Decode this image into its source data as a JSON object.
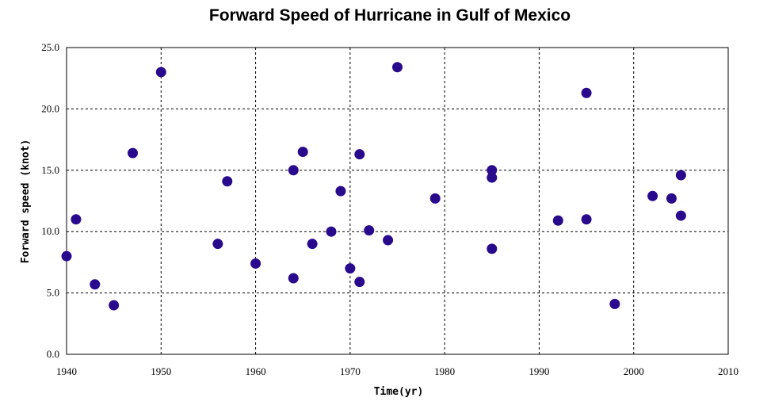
{
  "chart_data": {
    "type": "scatter",
    "title": "Forward Speed of Hurricane in Gulf of Mexico",
    "xlabel": "Time(yr)",
    "ylabel": "Forward speed (knot)",
    "xlim": [
      1940,
      2010
    ],
    "ylim": [
      0,
      25
    ],
    "x_ticks": [
      "1940",
      "1950",
      "1960",
      "1970",
      "1980",
      "1990",
      "2000",
      "2010"
    ],
    "y_ticks": [
      "0.0",
      "5.0",
      "10.0",
      "15.0",
      "20.0",
      "25.0"
    ],
    "grid": true,
    "marker_color": "#2a0a8c",
    "points": [
      {
        "x": 1940,
        "y": 8.0
      },
      {
        "x": 1941,
        "y": 11.0
      },
      {
        "x": 1943,
        "y": 5.7
      },
      {
        "x": 1945,
        "y": 4.0
      },
      {
        "x": 1947,
        "y": 16.4
      },
      {
        "x": 1950,
        "y": 23.0
      },
      {
        "x": 1956,
        "y": 9.0
      },
      {
        "x": 1957,
        "y": 14.1
      },
      {
        "x": 1960,
        "y": 7.4
      },
      {
        "x": 1964,
        "y": 15.0
      },
      {
        "x": 1964,
        "y": 6.2
      },
      {
        "x": 1965,
        "y": 16.5
      },
      {
        "x": 1966,
        "y": 9.0
      },
      {
        "x": 1968,
        "y": 10.0
      },
      {
        "x": 1969,
        "y": 13.3
      },
      {
        "x": 1970,
        "y": 7.0
      },
      {
        "x": 1971,
        "y": 16.3
      },
      {
        "x": 1971,
        "y": 5.9
      },
      {
        "x": 1972,
        "y": 10.1
      },
      {
        "x": 1974,
        "y": 9.3
      },
      {
        "x": 1975,
        "y": 23.4
      },
      {
        "x": 1979,
        "y": 12.7
      },
      {
        "x": 1985,
        "y": 15.0
      },
      {
        "x": 1985,
        "y": 14.4
      },
      {
        "x": 1985,
        "y": 8.6
      },
      {
        "x": 1992,
        "y": 10.9
      },
      {
        "x": 1995,
        "y": 21.3
      },
      {
        "x": 1995,
        "y": 11.0
      },
      {
        "x": 1998,
        "y": 4.1
      },
      {
        "x": 2002,
        "y": 12.9
      },
      {
        "x": 2004,
        "y": 12.7
      },
      {
        "x": 2005,
        "y": 14.6
      },
      {
        "x": 2005,
        "y": 11.3
      }
    ]
  }
}
